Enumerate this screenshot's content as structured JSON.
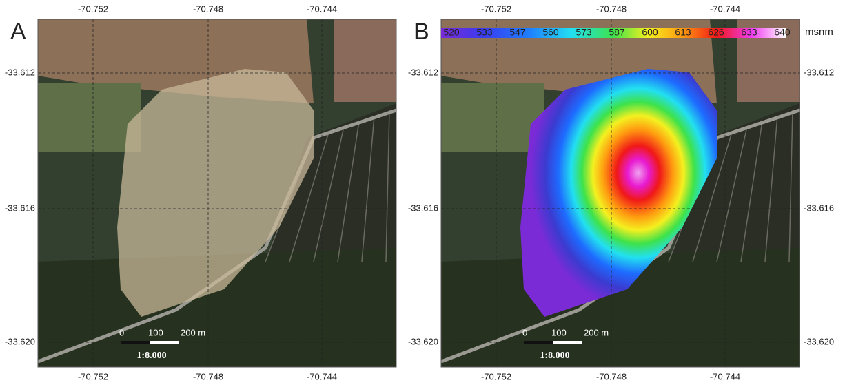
{
  "panels": [
    {
      "label": "A",
      "top_ticks": [
        "-70.752",
        "-70.748",
        "-70.744"
      ],
      "bottom_ticks": [
        "-70.752",
        "-70.748",
        "-70.744"
      ],
      "left_ticks": [
        "-33.612",
        "-33.616",
        "-33.620"
      ],
      "scale": {
        "labels": [
          "0",
          "100",
          "200 m"
        ],
        "ratio": "1:8.000"
      }
    },
    {
      "label": "B",
      "top_ticks": [
        "-70.752",
        "-70.748",
        "-70.744"
      ],
      "bottom_ticks": [
        "-70.752",
        "-70.748",
        "-70.744"
      ],
      "left_ticks": [
        "-33.612",
        "-33.616",
        "-33.620"
      ],
      "right_ticks": [
        "-33.612",
        "-33.616",
        "-33.620"
      ],
      "scale": {
        "labels": [
          "0",
          "100",
          "200 m"
        ],
        "ratio": "1:8.000"
      },
      "colorbar": {
        "labels": [
          "520",
          "533",
          "547",
          "560",
          "573",
          "587",
          "600",
          "613",
          "626",
          "633",
          "640"
        ],
        "unit": "msnm"
      }
    }
  ]
}
